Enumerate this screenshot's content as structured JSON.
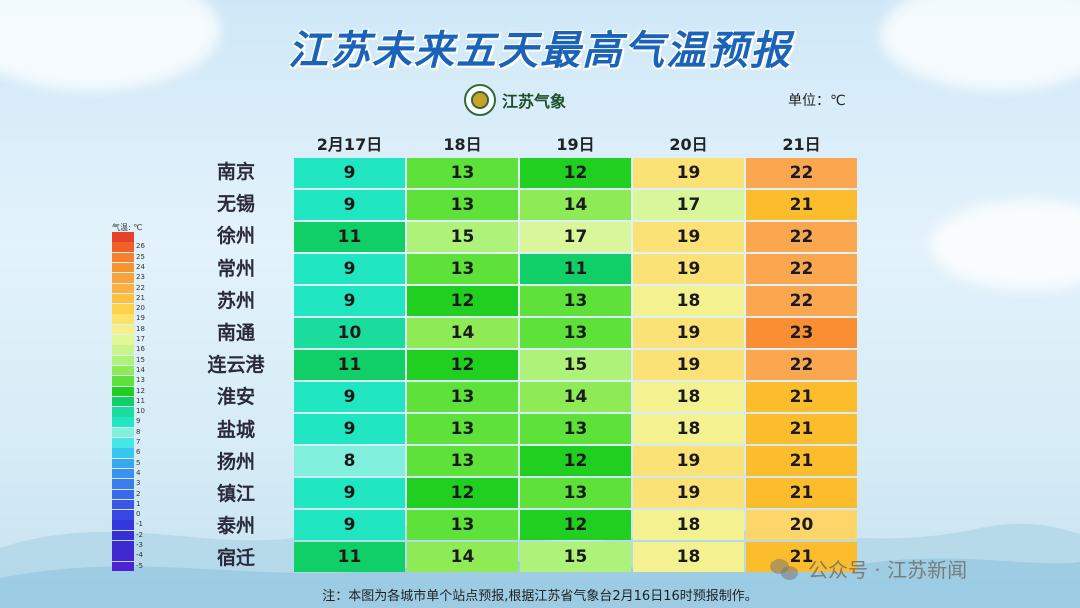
{
  "title": "江苏未来五天最高气温预报",
  "logo": {
    "text": "江苏气象",
    "icon": "meteorological-badge-icon"
  },
  "unit_label": "单位：℃",
  "columns": [
    "2月17日",
    "18日",
    "19日",
    "20日",
    "21日"
  ],
  "rows": [
    {
      "city": "南京",
      "temps": [
        9,
        13,
        12,
        19,
        22
      ]
    },
    {
      "city": "无锡",
      "temps": [
        9,
        13,
        14,
        17,
        21
      ]
    },
    {
      "city": "徐州",
      "temps": [
        11,
        15,
        17,
        19,
        22
      ]
    },
    {
      "city": "常州",
      "temps": [
        9,
        13,
        11,
        19,
        22
      ]
    },
    {
      "city": "苏州",
      "temps": [
        9,
        12,
        13,
        18,
        22
      ]
    },
    {
      "city": "南通",
      "temps": [
        10,
        14,
        13,
        19,
        23
      ]
    },
    {
      "city": "连云港",
      "temps": [
        11,
        12,
        15,
        19,
        22
      ]
    },
    {
      "city": "淮安",
      "temps": [
        9,
        13,
        14,
        18,
        21
      ]
    },
    {
      "city": "盐城",
      "temps": [
        9,
        13,
        13,
        18,
        21
      ]
    },
    {
      "city": "扬州",
      "temps": [
        8,
        13,
        12,
        19,
        21
      ]
    },
    {
      "city": "镇江",
      "temps": [
        9,
        12,
        13,
        19,
        21
      ]
    },
    {
      "city": "泰州",
      "temps": [
        9,
        13,
        12,
        18,
        20
      ]
    },
    {
      "city": "宿迁",
      "temps": [
        11,
        14,
        15,
        18,
        21
      ]
    }
  ],
  "legend": {
    "title": "气温: ℃",
    "levels": [
      {
        "label": "",
        "color": "#e8412a"
      },
      {
        "label": "26",
        "color": "#f2602a"
      },
      {
        "label": "25",
        "color": "#f5822b"
      },
      {
        "label": "24",
        "color": "#f7932f"
      },
      {
        "label": "23",
        "color": "#f9a23a"
      },
      {
        "label": "22",
        "color": "#fbb040"
      },
      {
        "label": "21",
        "color": "#fdc040"
      },
      {
        "label": "20",
        "color": "#fdd24a"
      },
      {
        "label": "19",
        "color": "#fde36c"
      },
      {
        "label": "18",
        "color": "#f6f08a"
      },
      {
        "label": "17",
        "color": "#e4f797"
      },
      {
        "label": "16",
        "color": "#c9f58a"
      },
      {
        "label": "15",
        "color": "#aef27a"
      },
      {
        "label": "14",
        "color": "#8eeb55"
      },
      {
        "label": "13",
        "color": "#5ee23a"
      },
      {
        "label": "12",
        "color": "#20cf20"
      },
      {
        "label": "11",
        "color": "#10cf66"
      },
      {
        "label": "10",
        "color": "#19dc9d"
      },
      {
        "label": "9",
        "color": "#20e6c2"
      },
      {
        "label": "8",
        "color": "#80f0dc"
      },
      {
        "label": "7",
        "color": "#48e4e6"
      },
      {
        "label": "6",
        "color": "#36c6ee"
      },
      {
        "label": "5",
        "color": "#36a8ef"
      },
      {
        "label": "4",
        "color": "#3a90ee"
      },
      {
        "label": "3",
        "color": "#3b7cec"
      },
      {
        "label": "2",
        "color": "#3a68ea"
      },
      {
        "label": "1",
        "color": "#3a56e6"
      },
      {
        "label": "0",
        "color": "#3846e2"
      },
      {
        "label": "-1",
        "color": "#3438dc"
      },
      {
        "label": "-2",
        "color": "#3430d6"
      },
      {
        "label": "-3",
        "color": "#3a2ad0"
      },
      {
        "label": "-4",
        "color": "#4426d0"
      },
      {
        "label": "-5",
        "color": "#5022d6"
      }
    ]
  },
  "temp_colors": {
    "8": "#80f0dc",
    "9": "#20e6c2",
    "10": "#19dc9d",
    "11": "#10cf66",
    "12": "#20cf20",
    "13": "#5ee23a",
    "14": "#8eeb55",
    "15": "#aef27a",
    "17": "#d9f69a",
    "18": "#f4f191",
    "19": "#fbe277",
    "20": "#fdd66a",
    "21": "#fbbd2c",
    "22": "#fba750",
    "23": "#f98f32"
  },
  "note": "注：本图为各城市单个站点预报,根据江苏省气象台2月16日16时预报制作。",
  "watermark": {
    "text": "公众号 · 江苏新闻",
    "icon": "wechat-icon"
  }
}
